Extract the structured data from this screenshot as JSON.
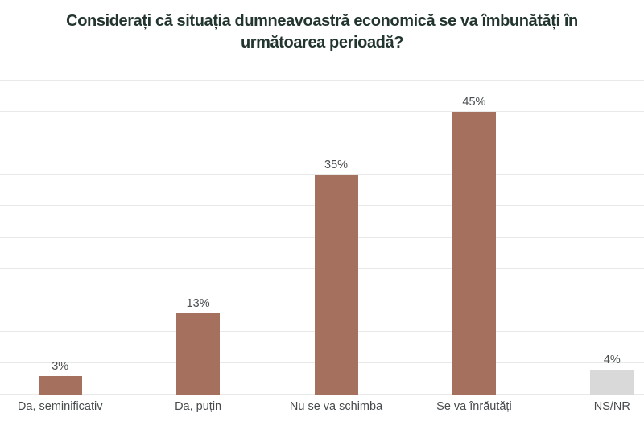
{
  "title": "Considerați că situația dumneavoastră economică se va îmbunătăți în următoarea perioadă?",
  "title_lines": [
    "Considerați că situația dumneavoastră economică se va îmbunătăți în",
    "următoarea perioadă?"
  ],
  "colors": {
    "bg": "#ffffff",
    "title": "#233530",
    "bar": "#a6705f",
    "bar_muted": "#d9d9d9",
    "gridline": "#e9e9e9",
    "label": "#474b4e",
    "value_label": "#4a4e51"
  },
  "chart_data": {
    "type": "bar",
    "title": "Considerați că situația dumneavoastră economică se va îmbunătăți în următoarea perioadă?",
    "categories": [
      "Da, seminificativ",
      "Da, puțin",
      "Nu se va schimba",
      "Se va înrăutăți",
      "NS/NR"
    ],
    "values": [
      3,
      13,
      35,
      45,
      4
    ],
    "value_labels": [
      "3%",
      "13%",
      "35%",
      "45%",
      "4%"
    ],
    "bar_colors": [
      "#a6705f",
      "#a6705f",
      "#a6705f",
      "#a6705f",
      "#d9d9d9"
    ],
    "xlabel": "",
    "ylabel": "",
    "ylim": [
      0,
      50
    ],
    "gridline_step": 5,
    "grid": true,
    "legend": false,
    "y_axis_labels_visible": false
  }
}
